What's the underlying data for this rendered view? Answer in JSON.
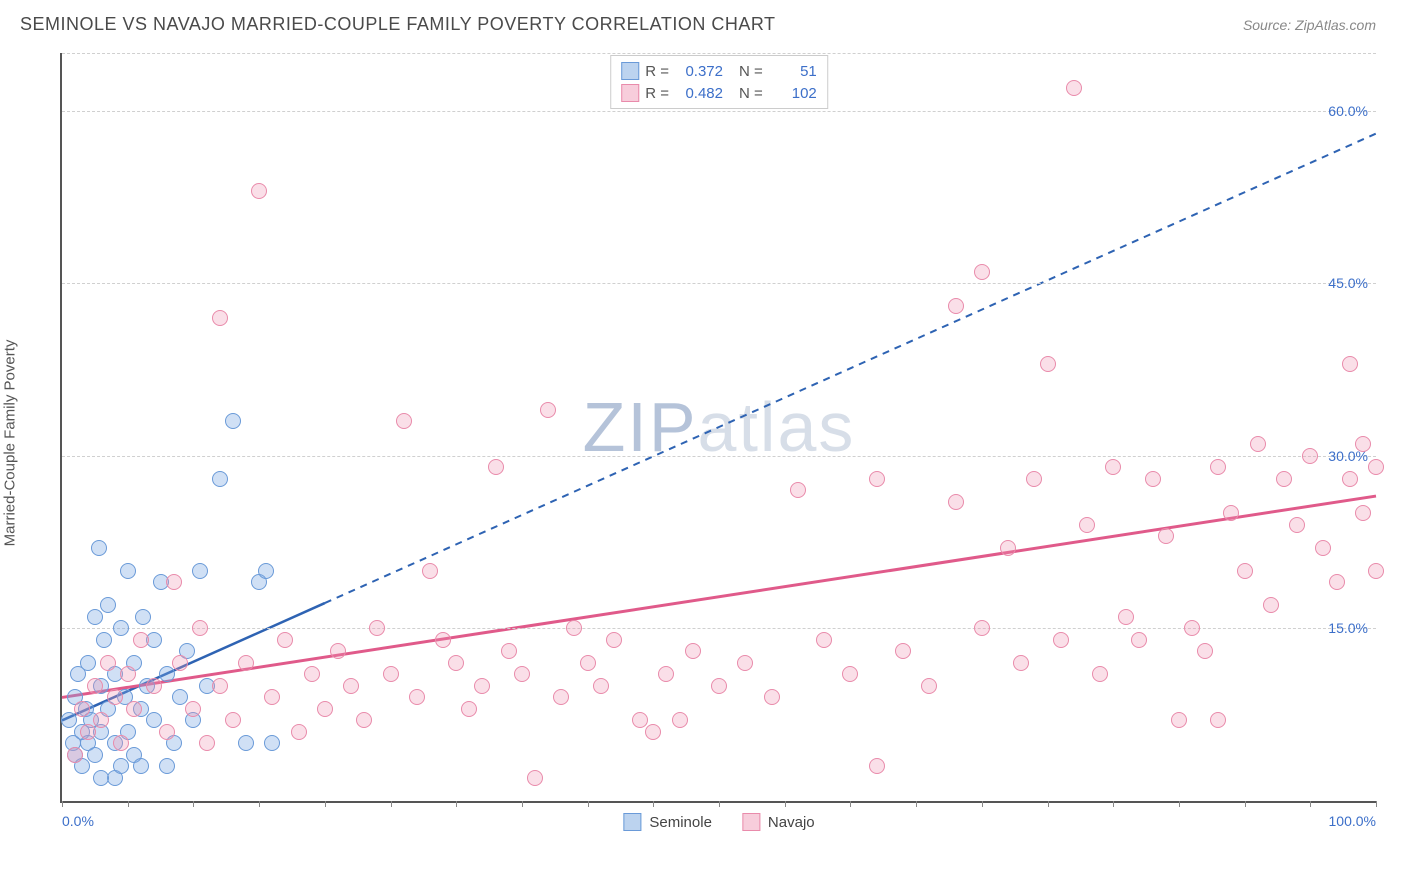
{
  "title": "SEMINOLE VS NAVAJO MARRIED-COUPLE FAMILY POVERTY CORRELATION CHART",
  "source_label": "Source: ",
  "source_name": "ZipAtlas.com",
  "y_axis_label": "Married-Couple Family Poverty",
  "watermark": {
    "bold": "ZIP",
    "rest": "atlas"
  },
  "chart": {
    "type": "scatter",
    "xlim": [
      0,
      100
    ],
    "ylim": [
      0,
      65
    ],
    "background_color": "#ffffff",
    "grid_color": "#d0d0d0",
    "axis_color": "#555555",
    "tick_label_color": "#3c6fc9",
    "y_ticks": [
      {
        "v": 15,
        "label": "15.0%"
      },
      {
        "v": 30,
        "label": "30.0%"
      },
      {
        "v": 45,
        "label": "45.0%"
      },
      {
        "v": 60,
        "label": "60.0%"
      }
    ],
    "x_ticks_minor_step": 5,
    "x_labels": [
      {
        "v": 0,
        "label": "0.0%"
      },
      {
        "v": 100,
        "label": "100.0%"
      }
    ],
    "point_radius": 8,
    "point_stroke_width": 1.5,
    "series": [
      {
        "name": "Seminole",
        "fill": "rgba(120,165,225,0.35)",
        "stroke": "#6a9ad8",
        "swatch_fill": "#bcd3ef",
        "swatch_stroke": "#6a9ad8",
        "R": "0.372",
        "N": "51",
        "trend": {
          "solid_to_x": 20,
          "x1": 0,
          "y1": 7,
          "x2": 100,
          "y2": 58,
          "color": "#2e63b3",
          "width": 2.5,
          "dash": "7,6"
        },
        "points": [
          [
            0.5,
            7
          ],
          [
            0.8,
            5
          ],
          [
            1,
            9
          ],
          [
            1,
            4
          ],
          [
            1.2,
            11
          ],
          [
            1.5,
            6
          ],
          [
            1.5,
            3
          ],
          [
            1.8,
            8
          ],
          [
            2,
            12
          ],
          [
            2,
            5
          ],
          [
            2.2,
            7
          ],
          [
            2.5,
            16
          ],
          [
            2.5,
            4
          ],
          [
            2.8,
            22
          ],
          [
            3,
            10
          ],
          [
            3,
            6
          ],
          [
            3.2,
            14
          ],
          [
            3.5,
            8
          ],
          [
            3.5,
            17
          ],
          [
            4,
            5
          ],
          [
            4,
            11
          ],
          [
            4,
            2
          ],
          [
            4.5,
            15
          ],
          [
            4.8,
            9
          ],
          [
            5,
            6
          ],
          [
            5,
            20
          ],
          [
            5.5,
            12
          ],
          [
            5.5,
            4
          ],
          [
            6,
            8
          ],
          [
            6.2,
            16
          ],
          [
            6.5,
            10
          ],
          [
            7,
            7
          ],
          [
            7,
            14
          ],
          [
            7.5,
            19
          ],
          [
            8,
            11
          ],
          [
            8.5,
            5
          ],
          [
            9,
            9
          ],
          [
            9.5,
            13
          ],
          [
            10,
            7
          ],
          [
            10.5,
            20
          ],
          [
            11,
            10
          ],
          [
            12,
            28
          ],
          [
            13,
            33
          ],
          [
            14,
            5
          ],
          [
            15,
            19
          ],
          [
            15.5,
            20
          ],
          [
            16,
            5
          ],
          [
            4.5,
            3
          ],
          [
            6,
            3
          ],
          [
            8,
            3
          ],
          [
            3,
            2
          ]
        ]
      },
      {
        "name": "Navajo",
        "fill": "rgba(240,150,180,0.30)",
        "stroke": "#e98bab",
        "swatch_fill": "#f7cddb",
        "swatch_stroke": "#e98bab",
        "R": "0.482",
        "N": "102",
        "trend": {
          "solid_to_x": 100,
          "x1": 0,
          "y1": 9,
          "x2": 100,
          "y2": 26.5,
          "color": "#e05a8a",
          "width": 3,
          "dash": null
        },
        "points": [
          [
            1,
            4
          ],
          [
            1.5,
            8
          ],
          [
            2,
            6
          ],
          [
            2.5,
            10
          ],
          [
            3,
            7
          ],
          [
            3.5,
            12
          ],
          [
            4,
            9
          ],
          [
            4.5,
            5
          ],
          [
            5,
            11
          ],
          [
            5.5,
            8
          ],
          [
            6,
            14
          ],
          [
            7,
            10
          ],
          [
            8,
            6
          ],
          [
            8.5,
            19
          ],
          [
            9,
            12
          ],
          [
            10,
            8
          ],
          [
            10.5,
            15
          ],
          [
            11,
            5
          ],
          [
            12,
            10
          ],
          [
            12,
            42
          ],
          [
            13,
            7
          ],
          [
            14,
            12
          ],
          [
            15,
            53
          ],
          [
            16,
            9
          ],
          [
            17,
            14
          ],
          [
            18,
            6
          ],
          [
            19,
            11
          ],
          [
            20,
            8
          ],
          [
            21,
            13
          ],
          [
            22,
            10
          ],
          [
            23,
            7
          ],
          [
            24,
            15
          ],
          [
            25,
            11
          ],
          [
            26,
            33
          ],
          [
            27,
            9
          ],
          [
            28,
            20
          ],
          [
            29,
            14
          ],
          [
            30,
            12
          ],
          [
            31,
            8
          ],
          [
            32,
            10
          ],
          [
            33,
            29
          ],
          [
            34,
            13
          ],
          [
            35,
            11
          ],
          [
            36,
            2
          ],
          [
            37,
            34
          ],
          [
            38,
            9
          ],
          [
            39,
            15
          ],
          [
            40,
            12
          ],
          [
            41,
            10
          ],
          [
            42,
            14
          ],
          [
            44,
            7
          ],
          [
            45,
            6
          ],
          [
            46,
            11
          ],
          [
            47,
            7
          ],
          [
            48,
            13
          ],
          [
            50,
            10
          ],
          [
            52,
            12
          ],
          [
            54,
            9
          ],
          [
            56,
            27
          ],
          [
            58,
            14
          ],
          [
            60,
            11
          ],
          [
            62,
            28
          ],
          [
            62,
            3
          ],
          [
            64,
            13
          ],
          [
            66,
            10
          ],
          [
            68,
            43
          ],
          [
            68,
            26
          ],
          [
            70,
            46
          ],
          [
            70,
            15
          ],
          [
            72,
            22
          ],
          [
            73,
            12
          ],
          [
            74,
            28
          ],
          [
            75,
            38
          ],
          [
            76,
            14
          ],
          [
            77,
            62
          ],
          [
            78,
            24
          ],
          [
            79,
            11
          ],
          [
            80,
            29
          ],
          [
            81,
            16
          ],
          [
            82,
            14
          ],
          [
            83,
            28
          ],
          [
            84,
            23
          ],
          [
            85,
            7
          ],
          [
            86,
            15
          ],
          [
            87,
            13
          ],
          [
            88,
            29
          ],
          [
            89,
            25
          ],
          [
            90,
            20
          ],
          [
            91,
            31
          ],
          [
            92,
            17
          ],
          [
            93,
            28
          ],
          [
            94,
            24
          ],
          [
            95,
            30
          ],
          [
            96,
            22
          ],
          [
            97,
            19
          ],
          [
            98,
            38
          ],
          [
            98,
            28
          ],
          [
            99,
            31
          ],
          [
            99,
            25
          ],
          [
            100,
            29
          ],
          [
            100,
            20
          ],
          [
            88,
            7
          ]
        ]
      }
    ]
  },
  "legend": {
    "r_label": "R =",
    "n_label": "N ="
  }
}
